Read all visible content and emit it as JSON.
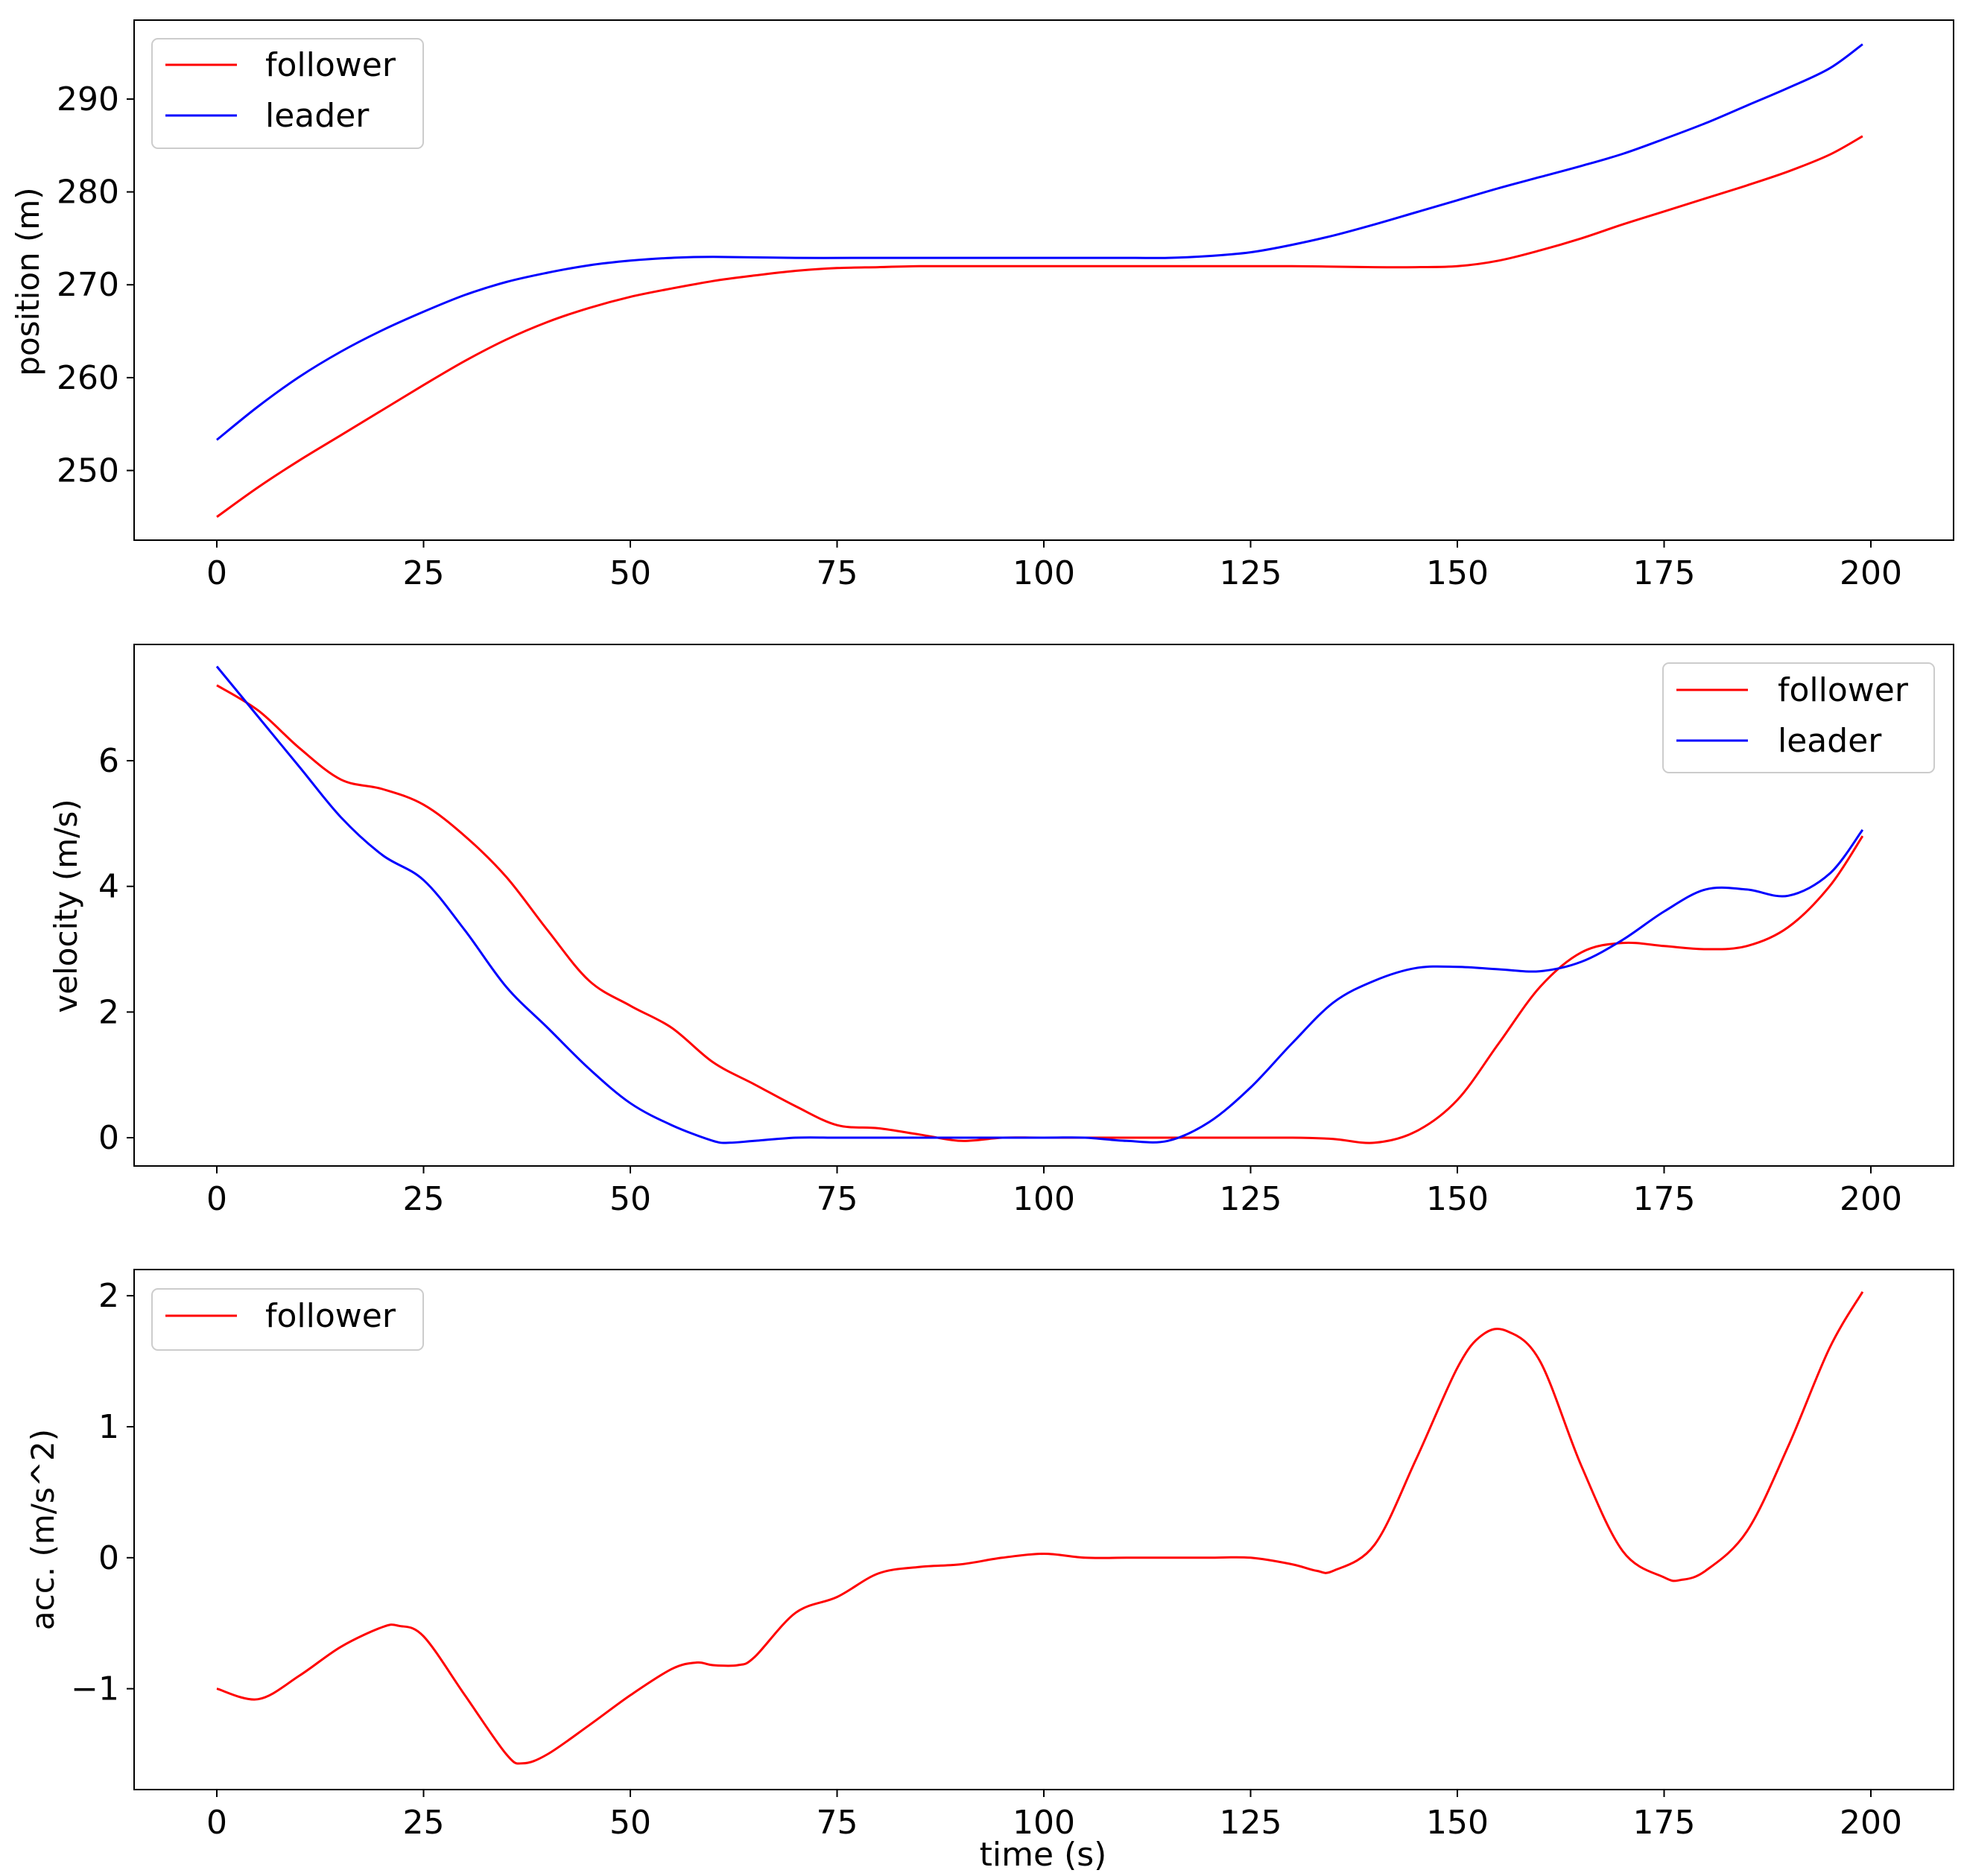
{
  "figure": {
    "xlabel": "time (s)"
  },
  "colors": {
    "follower": "#ff0000",
    "leader": "#0000ff",
    "axis": "#000000",
    "legend_border": "#cccccc",
    "background": "#ffffff"
  },
  "chart_data": [
    {
      "type": "line",
      "title": "",
      "xlabel": "",
      "ylabel": "position (m)",
      "xlim": [
        -10,
        210
      ],
      "ylim": [
        242.5,
        298.5
      ],
      "xticks": [
        0,
        25,
        50,
        75,
        100,
        125,
        150,
        175,
        200
      ],
      "yticks": [
        250,
        260,
        270,
        280,
        290
      ],
      "legend": "upper-left",
      "grid": false,
      "series": [
        {
          "name": "follower",
          "color": "#ff0000",
          "x": [
            0,
            5,
            10,
            15,
            20,
            25,
            30,
            35,
            40,
            45,
            50,
            55,
            60,
            65,
            70,
            75,
            80,
            85,
            90,
            100,
            110,
            120,
            130,
            140,
            145,
            150,
            155,
            160,
            165,
            170,
            175,
            180,
            185,
            190,
            195,
            199
          ],
          "y": [
            245,
            248.2,
            251.1,
            253.8,
            256.5,
            259.2,
            261.8,
            264.1,
            266,
            267.5,
            268.7,
            269.6,
            270.4,
            271,
            271.5,
            271.8,
            271.9,
            272,
            272,
            272,
            272,
            272,
            272,
            271.9,
            271.9,
            272,
            272.6,
            273.7,
            275,
            276.5,
            277.9,
            279.3,
            280.7,
            282.2,
            284,
            286
          ]
        },
        {
          "name": "leader",
          "color": "#0000ff",
          "x": [
            0,
            5,
            10,
            15,
            20,
            25,
            30,
            35,
            40,
            45,
            50,
            55,
            60,
            70,
            80,
            90,
            100,
            110,
            115,
            120,
            125,
            130,
            135,
            140,
            145,
            150,
            155,
            160,
            165,
            170,
            175,
            180,
            185,
            190,
            195,
            199
          ],
          "y": [
            253.3,
            256.9,
            260.1,
            262.8,
            265.1,
            267.1,
            268.9,
            270.3,
            271.3,
            272.1,
            272.6,
            272.9,
            273,
            272.9,
            272.9,
            272.9,
            272.9,
            272.9,
            272.9,
            273.1,
            273.5,
            274.3,
            275.3,
            276.5,
            277.8,
            279.1,
            280.4,
            281.6,
            282.8,
            284.1,
            285.7,
            287.4,
            289.3,
            291.2,
            293.3,
            295.9
          ]
        }
      ]
    },
    {
      "type": "line",
      "title": "",
      "xlabel": "",
      "ylabel": "velocity (m/s)",
      "xlim": [
        -10,
        210
      ],
      "ylim": [
        -0.45,
        7.85
      ],
      "xticks": [
        0,
        25,
        50,
        75,
        100,
        125,
        150,
        175,
        200
      ],
      "yticks": [
        0,
        2,
        4,
        6
      ],
      "legend": "upper-right",
      "grid": false,
      "series": [
        {
          "name": "follower",
          "color": "#ff0000",
          "x": [
            0,
            5,
            10,
            15,
            20,
            25,
            30,
            35,
            40,
            45,
            50,
            55,
            60,
            65,
            70,
            75,
            80,
            85,
            90,
            95,
            100,
            110,
            120,
            130,
            135,
            140,
            145,
            150,
            155,
            160,
            165,
            170,
            175,
            180,
            185,
            190,
            195,
            199
          ],
          "y": [
            7.2,
            6.8,
            6.2,
            5.7,
            5.55,
            5.3,
            4.8,
            4.15,
            3.3,
            2.5,
            2.1,
            1.75,
            1.2,
            0.85,
            0.5,
            0.2,
            0.15,
            0.05,
            -0.05,
            0,
            0,
            0,
            0,
            0,
            -0.02,
            -0.08,
            0.1,
            0.6,
            1.5,
            2.4,
            2.95,
            3.1,
            3.05,
            3,
            3.05,
            3.35,
            4,
            4.8
          ]
        },
        {
          "name": "leader",
          "color": "#0000ff",
          "x": [
            0,
            5,
            10,
            15,
            20,
            25,
            30,
            35,
            40,
            45,
            50,
            55,
            60,
            62,
            65,
            70,
            75,
            80,
            90,
            100,
            105,
            110,
            115,
            120,
            125,
            130,
            135,
            140,
            145,
            150,
            155,
            160,
            165,
            170,
            175,
            180,
            185,
            190,
            195,
            199
          ],
          "y": [
            7.5,
            6.7,
            5.9,
            5.1,
            4.5,
            4.1,
            3.3,
            2.4,
            1.75,
            1.1,
            0.55,
            0.2,
            -0.05,
            -0.08,
            -0.05,
            0,
            0,
            0,
            0,
            0,
            0,
            -0.05,
            -0.05,
            0.25,
            0.8,
            1.5,
            2.15,
            2.5,
            2.7,
            2.72,
            2.68,
            2.65,
            2.8,
            3.15,
            3.6,
            3.95,
            3.95,
            3.85,
            4.2,
            4.9
          ]
        }
      ]
    },
    {
      "type": "line",
      "title": "",
      "xlabel": "time (s)",
      "ylabel": "acc. (m/s^2)",
      "xlim": [
        -10,
        210
      ],
      "ylim": [
        -1.77,
        2.2
      ],
      "xticks": [
        0,
        25,
        50,
        75,
        100,
        125,
        150,
        175,
        200
      ],
      "yticks": [
        -1,
        0,
        1,
        2
      ],
      "ytick_labels": [
        "−1",
        "0",
        "1",
        "2"
      ],
      "legend": "upper-left",
      "grid": false,
      "series": [
        {
          "name": "follower",
          "color": "#ff0000",
          "x": [
            0,
            5,
            10,
            15,
            20,
            22,
            25,
            30,
            35,
            37,
            40,
            45,
            50,
            55,
            58,
            60,
            63,
            65,
            70,
            75,
            80,
            85,
            90,
            95,
            100,
            105,
            110,
            115,
            120,
            125,
            130,
            133,
            135,
            140,
            145,
            150,
            153,
            156,
            160,
            165,
            170,
            175,
            177,
            180,
            185,
            190,
            195,
            199
          ],
          "y": [
            -1,
            -1.08,
            -0.9,
            -0.68,
            -0.53,
            -0.52,
            -0.6,
            -1.05,
            -1.5,
            -1.57,
            -1.5,
            -1.28,
            -1.05,
            -0.85,
            -0.8,
            -0.82,
            -0.82,
            -0.76,
            -0.42,
            -0.3,
            -0.12,
            -0.07,
            -0.05,
            0,
            0.03,
            0,
            0,
            0,
            0,
            0,
            -0.05,
            -0.1,
            -0.1,
            0.1,
            0.75,
            1.45,
            1.7,
            1.73,
            1.5,
            0.7,
            0.05,
            -0.15,
            -0.17,
            -0.1,
            0.2,
            0.85,
            1.6,
            2.03
          ]
        }
      ]
    }
  ]
}
